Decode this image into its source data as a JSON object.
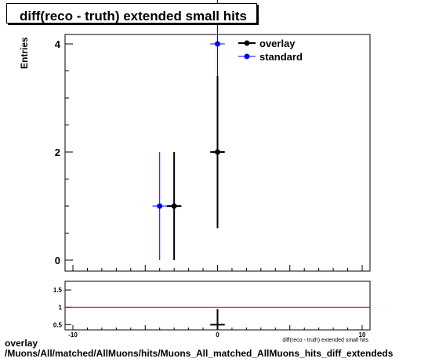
{
  "title": "diff(reco - truth) extended small hits",
  "footer": {
    "line1": "overlay",
    "line2": "/Muons/All/matched/AllMuons/hits/Muons_All_matched_AllMuons_hits_diff_extendeds"
  },
  "colors": {
    "overlay": "#000000",
    "standard": "#0000ff",
    "ratio_line": "#cc0000"
  },
  "chart_data": [
    {
      "type": "scatter",
      "title": "diff(reco - truth) extended small hits",
      "xlabel": "diff(reco - truth) extended small hits",
      "ylabel": "Entries",
      "xlim": [
        -10,
        10
      ],
      "ylim": [
        0,
        4.2
      ],
      "x_ticks": [
        -10,
        0,
        10
      ],
      "y_ticks": [
        0,
        2,
        4
      ],
      "legend": "top-right",
      "series": [
        {
          "name": "overlay",
          "x": [
            -3,
            0
          ],
          "y": [
            1,
            2
          ],
          "yerr": [
            1,
            1.41
          ],
          "xerr": 0.5
        },
        {
          "name": "standard",
          "x": [
            -4,
            0
          ],
          "y": [
            1,
            4
          ],
          "yerr": [
            1,
            2
          ],
          "xerr": 0.5
        }
      ]
    },
    {
      "type": "scatter",
      "xlim": [
        -10,
        10
      ],
      "ylim": [
        0.35,
        1.75
      ],
      "y_ticks": [
        0.5,
        1,
        1.5
      ],
      "reference_line": 1,
      "series": [
        {
          "x": [
            0
          ],
          "y": [
            0.5
          ],
          "yerr": [
            0.45
          ],
          "xerr": 0.5
        }
      ]
    }
  ]
}
